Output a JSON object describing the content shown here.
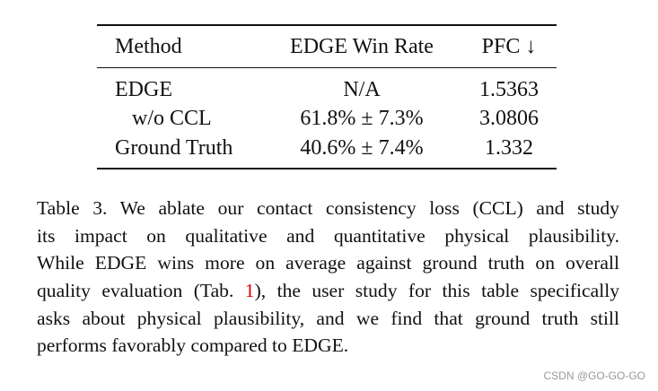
{
  "table": {
    "header": [
      "Method",
      "EDGE Win Rate",
      "PFC ↓"
    ],
    "rows": [
      [
        "EDGE",
        "N/A",
        "1.5363"
      ],
      [
        "w/o CCL",
        "61.8% ± 7.3%",
        "3.0806"
      ],
      [
        "Ground Truth",
        "40.6% ± 7.4%",
        "1.332"
      ]
    ]
  },
  "caption": {
    "lines": [
      [
        "Table 3.",
        "We ablate our contact consistency loss (CCL) and study"
      ],
      [
        "its impact on qualitative and quantitative physical plausibility."
      ],
      [
        "While EDGE wins more on average against ground truth on overall"
      ],
      [
        "quality evaluation (Tab. ",
        "1",
        "), the user study for this table specifically"
      ],
      [
        "asks about physical plausibility, and we find that ground truth still"
      ],
      [
        "performs favorably compared to EDGE."
      ]
    ]
  },
  "watermark": "CSDN @GO-GO-GO"
}
